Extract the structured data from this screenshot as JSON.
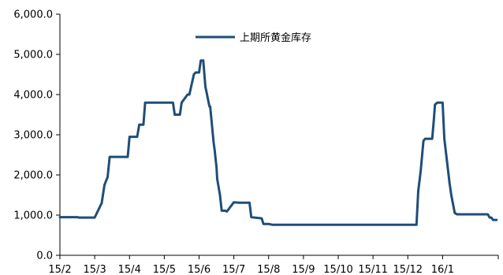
{
  "chart_data": {
    "type": "line",
    "title": "",
    "xlabel": "",
    "ylabel": "",
    "x_tick_labels": [
      "15/2",
      "15/3",
      "15/4",
      "15/5",
      "15/6",
      "15/7",
      "15/8",
      "15/9",
      "15/10",
      "15/11",
      "15/12",
      "16/1"
    ],
    "y_tick_labels": [
      "0.0",
      "1,000.0",
      "2,000.0",
      "3,000.0",
      "4,000.0",
      "5,000.0",
      "6,000.0"
    ],
    "ylim": [
      0,
      6000
    ],
    "xlim": [
      0,
      12.6
    ],
    "grid": false,
    "legend_position": "top-center",
    "series": [
      {
        "name": "上期所黄金库存",
        "color": "#1f4e79",
        "x": [
          0,
          0.5,
          0.55,
          1.0,
          1.2,
          1.28,
          1.37,
          1.43,
          1.95,
          2.0,
          2.22,
          2.28,
          2.4,
          2.45,
          3.25,
          3.3,
          3.45,
          3.5,
          3.67,
          3.72,
          3.85,
          3.9,
          4.0,
          4.05,
          4.12,
          4.18,
          4.3,
          4.32,
          4.42,
          4.45,
          4.48,
          4.5,
          4.52,
          4.6,
          4.65,
          4.68,
          4.75,
          4.8,
          5.0,
          5.15,
          5.2,
          5.23,
          5.3,
          5.32,
          5.45,
          5.5,
          5.8,
          5.85,
          6.0,
          6.05,
          6.1,
          6.2,
          6.4,
          6.6,
          6.75,
          6.8,
          6.85,
          6.9,
          7.0,
          7.05,
          7.15,
          7.3,
          10.25,
          10.3,
          10.37,
          10.45,
          10.5,
          10.7,
          10.75,
          10.78,
          10.85,
          10.9,
          10.95,
          11.0,
          11.05,
          11.2,
          11.25,
          11.35,
          11.42,
          11.5,
          11.55,
          11.6,
          11.65,
          11.75,
          11.8,
          12.25,
          12.3,
          12.35,
          12.4,
          12.45,
          12.5,
          12.55
        ],
        "values": [
          950,
          950,
          940,
          940,
          1300,
          1750,
          1950,
          2450,
          2450,
          2950,
          2950,
          3250,
          3250,
          3800,
          3800,
          3500,
          3500,
          3800,
          4000,
          4000,
          4500,
          4550,
          4550,
          4850,
          4850,
          4200,
          3700,
          3700,
          2800,
          2600,
          2350,
          2200,
          1900,
          1500,
          1110,
          1110,
          1110,
          1090,
          1320,
          1310,
          1310,
          1310,
          1310,
          1310,
          1310,
          950,
          920,
          780,
          780,
          770,
          760,
          760,
          760,
          760,
          760,
          760,
          760,
          760,
          760,
          760,
          760,
          760,
          760,
          1600,
          2100,
          2850,
          2900,
          2900,
          3400,
          3750,
          3800,
          3800,
          3800,
          3800,
          2900,
          1800,
          1500,
          1050,
          1020,
          1020,
          1020,
          1020,
          1020,
          1020,
          1020,
          1020,
          1020,
          940,
          940,
          880,
          880,
          880
        ]
      }
    ]
  }
}
